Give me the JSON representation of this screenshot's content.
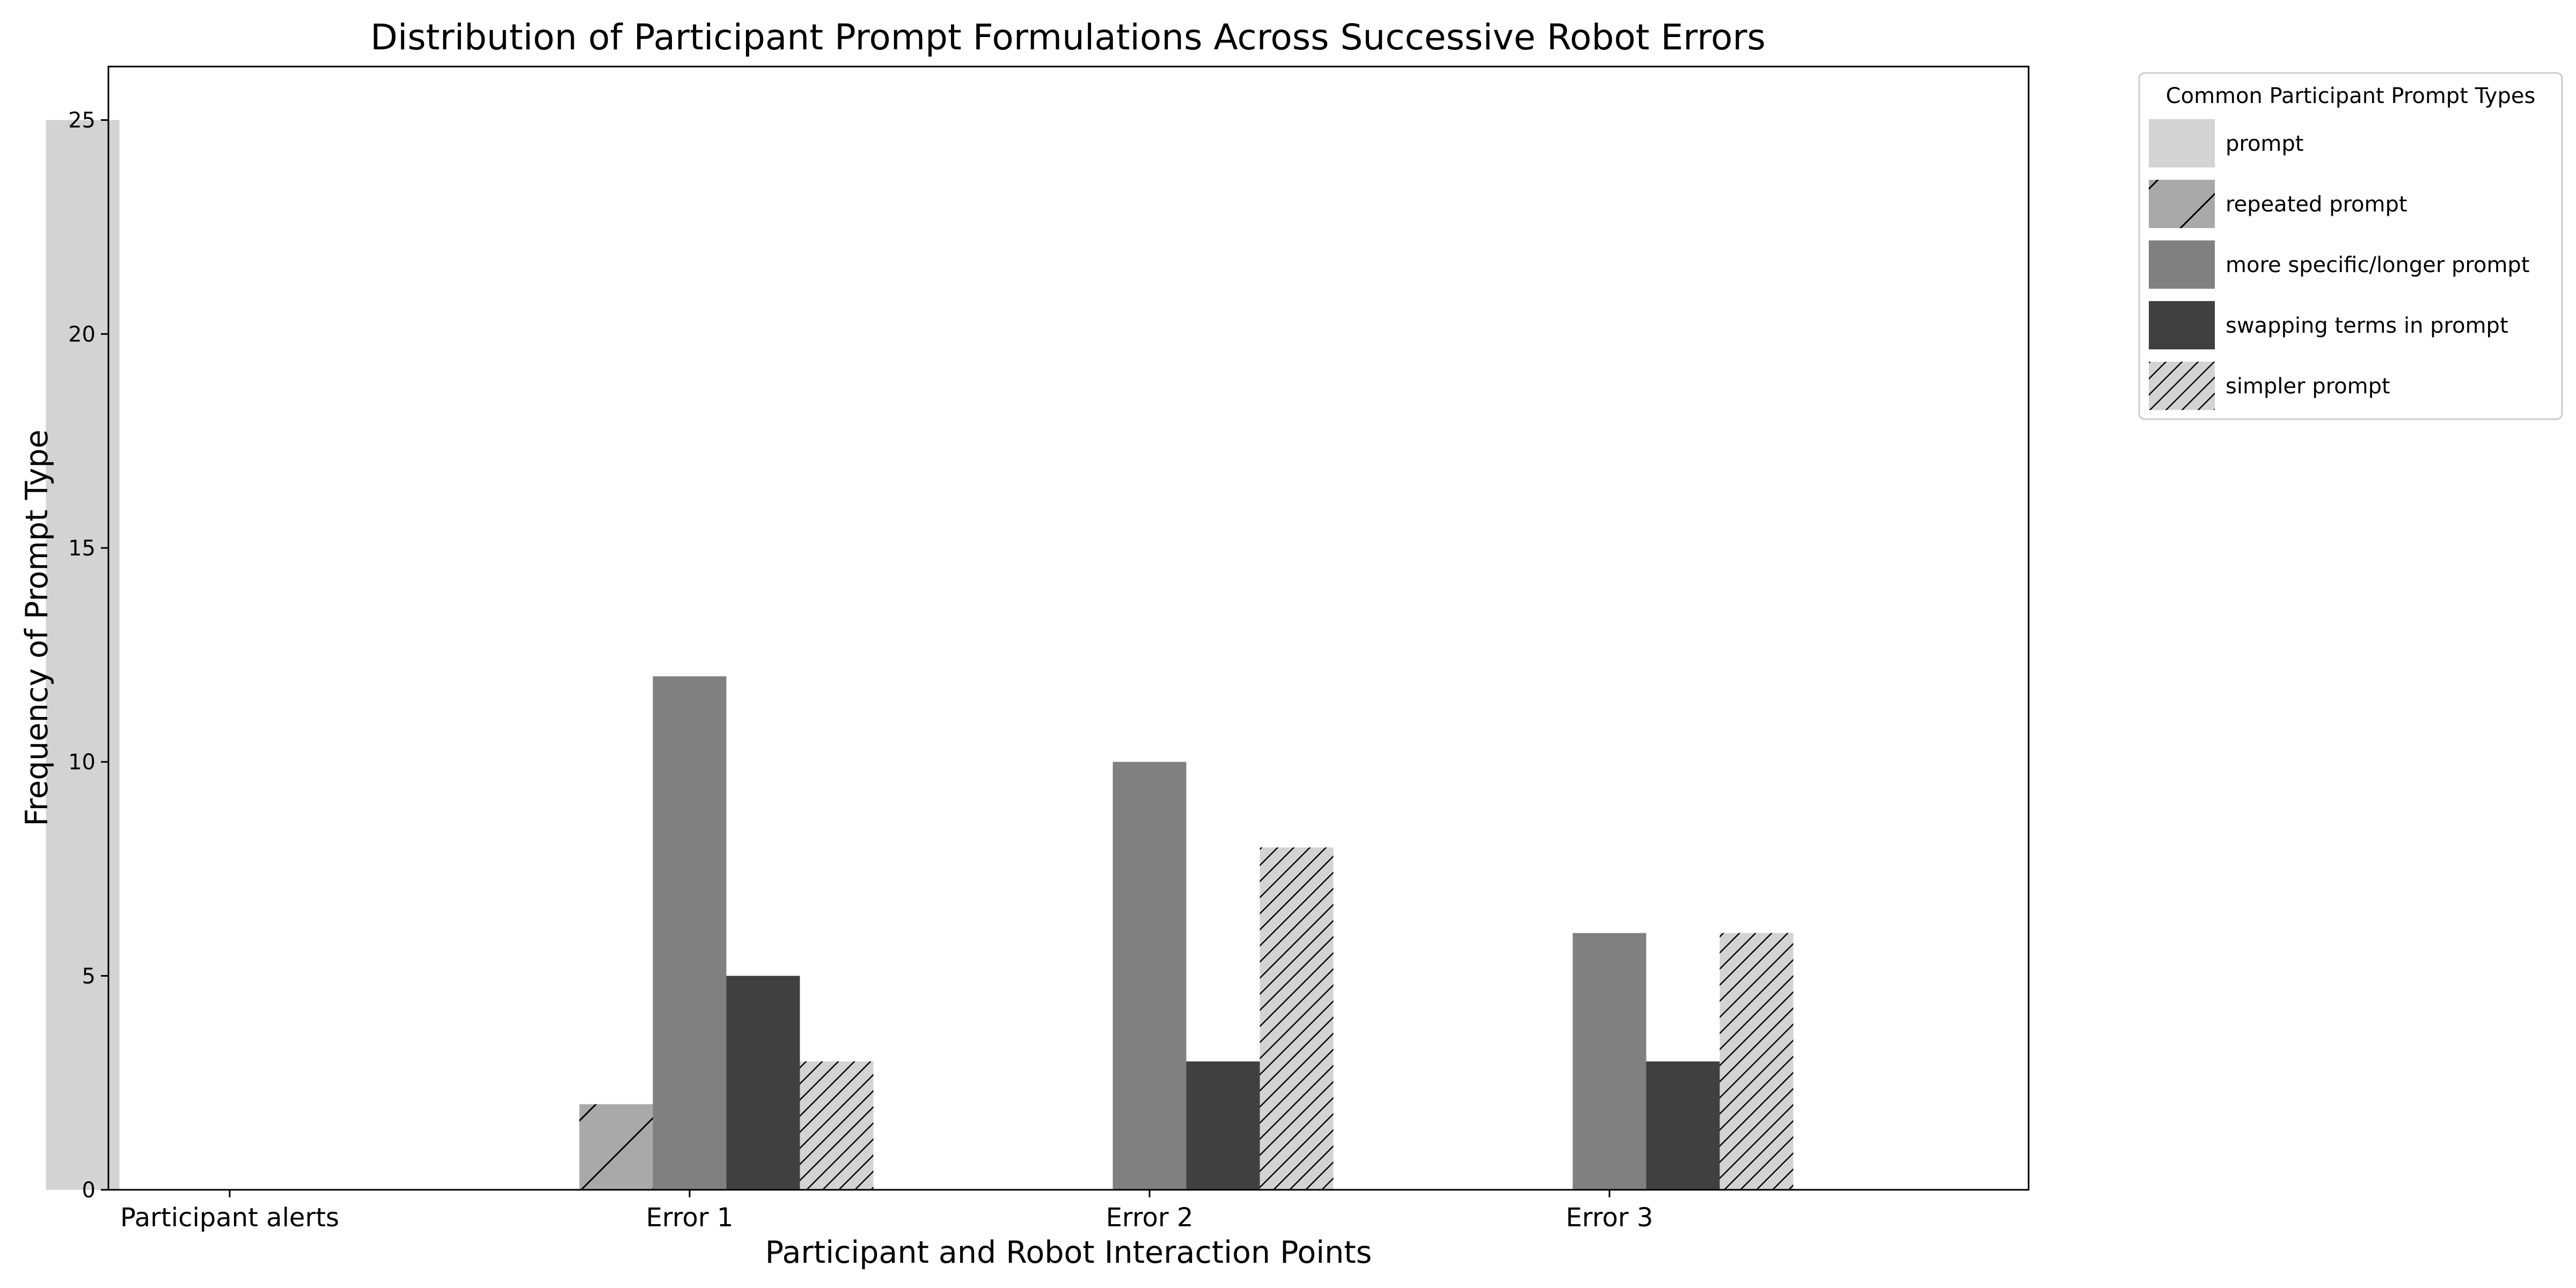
{
  "chart_data": {
    "type": "bar",
    "title": "Distribution of Participant Prompt Formulations Across Successive Robot Errors",
    "xlabel": "Participant and Robot Interaction Points",
    "ylabel": "Frequency of Prompt Type",
    "categories": [
      "Participant alerts",
      "Error 1",
      "Error 2",
      "Error 3"
    ],
    "ylim": [
      0,
      26.25
    ],
    "yticks": [
      0,
      5,
      10,
      15,
      20,
      25
    ],
    "grid": false,
    "legend": {
      "title": "Common Participant Prompt Types",
      "placement": "outside-right-top"
    },
    "series": [
      {
        "name": "prompt",
        "values": [
          25,
          0,
          0,
          0
        ],
        "color": "#d3d3d3",
        "hatch": "none"
      },
      {
        "name": "repeated prompt",
        "values": [
          0,
          2,
          0,
          0
        ],
        "color": "#a9a9a9",
        "hatch": "sparse-diagonal"
      },
      {
        "name": "more specific/longer prompt",
        "values": [
          0,
          12,
          10,
          6
        ],
        "color": "#808080",
        "hatch": "none"
      },
      {
        "name": "swapping terms in prompt",
        "values": [
          0,
          5,
          3,
          3
        ],
        "color": "#404040",
        "hatch": "none"
      },
      {
        "name": "simpler prompt",
        "values": [
          0,
          3,
          8,
          6
        ],
        "color": "#d3d3d3",
        "hatch": "dense-diagonal"
      }
    ]
  }
}
